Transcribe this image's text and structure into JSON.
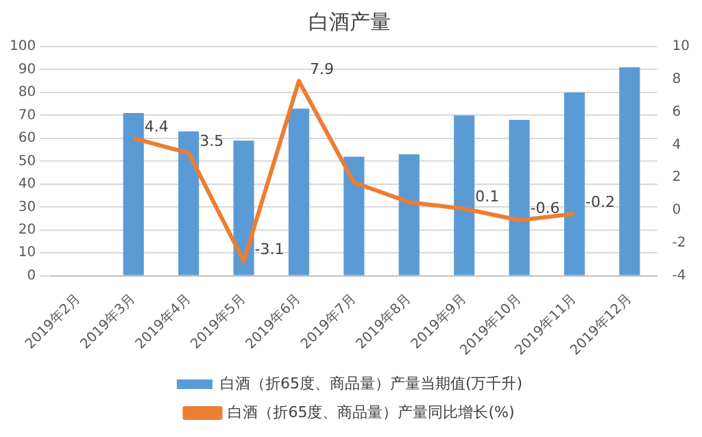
{
  "chart_data": {
    "type": "bar",
    "title": "白酒产量",
    "categories": [
      "2019年2月",
      "2019年3月",
      "2019年4月",
      "2019年5月",
      "2019年6月",
      "2019年7月",
      "2019年8月",
      "2019年9月",
      "2019年10月",
      "2019年11月",
      "2019年12月"
    ],
    "series": [
      {
        "name": "白酒（折65度、商品量）产量当期值(万千升)",
        "color": "#5b9bd5",
        "values": [
          null,
          71,
          63,
          59,
          73,
          52,
          53,
          70,
          68,
          80,
          91
        ]
      },
      {
        "name": "白酒（折65度、商品量）产量同比增长(%)",
        "type": "line",
        "axis": "y2",
        "color": "#ed7d31",
        "marker": "none",
        "values": [
          null,
          4.4,
          3.5,
          -3.1,
          7.9,
          1.7,
          0.5,
          0.1,
          -0.6,
          -0.2,
          null
        ],
        "value_labels": [
          null,
          "4.4",
          "3.5",
          "-3.1",
          "7.9",
          null,
          null,
          "0.1",
          "-0.6",
          "-0.2",
          null
        ]
      }
    ],
    "ylim": [
      0,
      100
    ],
    "yticks": [
      0,
      10,
      20,
      30,
      40,
      50,
      60,
      70,
      80,
      90,
      100
    ],
    "y2lim": [
      -4,
      10
    ],
    "y2ticks": [
      -4,
      -2,
      0,
      2,
      4,
      6,
      8,
      10
    ],
    "grid": "y",
    "legend": "bottom"
  }
}
